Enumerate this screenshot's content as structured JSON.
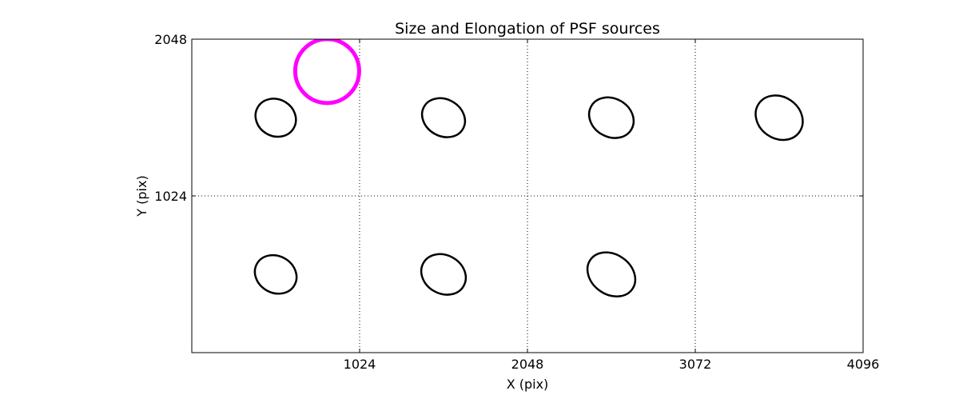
{
  "chart_data": {
    "type": "scatter",
    "title": "Size and Elongation of PSF sources",
    "xlabel": "X (pix)",
    "ylabel": "Y (pix)",
    "xlim": [
      0,
      4096
    ],
    "ylim": [
      0,
      2048
    ],
    "xticks": [
      1024,
      2048,
      3072,
      4096
    ],
    "yticks": [
      1024,
      2048
    ],
    "xtick_labels": [
      "1024",
      "2048",
      "3072",
      "4096"
    ],
    "ytick_labels": [
      "1024",
      "2048"
    ],
    "grid": true,
    "sources": [
      {
        "x": 512,
        "y": 1535,
        "a": 26,
        "b": 23,
        "angle": 30
      },
      {
        "x": 1536,
        "y": 1535,
        "a": 28,
        "b": 23,
        "angle": 30
      },
      {
        "x": 2560,
        "y": 1535,
        "a": 29,
        "b": 24,
        "angle": 30
      },
      {
        "x": 3584,
        "y": 1535,
        "a": 31,
        "b": 26,
        "angle": 35
      },
      {
        "x": 512,
        "y": 511,
        "a": 27,
        "b": 23,
        "angle": 30
      },
      {
        "x": 1536,
        "y": 511,
        "a": 29,
        "b": 24,
        "angle": 30
      },
      {
        "x": 2560,
        "y": 511,
        "a": 32,
        "b": 25,
        "angle": 35
      }
    ],
    "source_color": "#000000",
    "reference": {
      "x": 826,
      "y": 1840,
      "r": 40,
      "color": "#ff00ff"
    }
  }
}
